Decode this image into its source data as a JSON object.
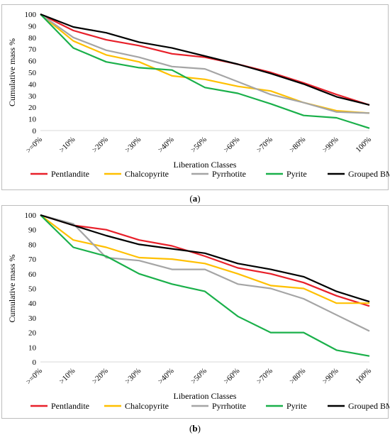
{
  "chart_data": [
    {
      "panel": "a",
      "type": "line",
      "ylabel": "Cumulative mass %",
      "xlabel": "Liberation Classes",
      "ylim": [
        0,
        100
      ],
      "yticks": [
        0,
        10,
        20,
        30,
        40,
        50,
        60,
        70,
        80,
        90,
        100
      ],
      "grid": false,
      "legend_position": "bottom",
      "categories": [
        ">=0%",
        ">10%",
        ">20%",
        ">30%",
        ">40%",
        ">50%",
        ">60%",
        ">70%",
        ">80%",
        ">90%",
        "100%"
      ],
      "series": [
        {
          "name": "Pentlandite",
          "color": "#e8202a",
          "values": [
            100,
            86,
            78,
            73,
            66,
            63,
            57,
            50,
            41,
            31,
            22
          ]
        },
        {
          "name": "Chalcopyrite",
          "color": "#ffc000",
          "values": [
            100,
            77,
            65,
            59,
            47,
            44,
            38,
            34,
            24,
            17,
            15
          ]
        },
        {
          "name": "Pyrrhotite",
          "color": "#a5a5a5",
          "values": [
            100,
            80,
            69,
            63,
            55,
            53,
            42,
            31,
            24,
            16,
            15
          ]
        },
        {
          "name": "Pyrite",
          "color": "#1ab04a",
          "values": [
            100,
            71,
            59,
            54,
            52,
            37,
            32,
            23,
            13,
            11,
            2
          ]
        },
        {
          "name": "Grouped BMS",
          "color": "#000000",
          "values": [
            100,
            89,
            84,
            76,
            71,
            64,
            57,
            49,
            40,
            29,
            22
          ]
        }
      ]
    },
    {
      "panel": "b",
      "type": "line",
      "ylabel": "Cumulative mass %",
      "xlabel": "Liberation Classes",
      "ylim": [
        0,
        100
      ],
      "yticks": [
        0,
        10,
        20,
        30,
        40,
        50,
        60,
        70,
        80,
        90,
        100
      ],
      "grid": false,
      "legend_position": "bottom",
      "categories": [
        ">=0%",
        ">10%",
        ">20%",
        ">30%",
        ">40%",
        ">50%",
        ">60%",
        ">70%",
        ">80%",
        ">90%",
        "100%"
      ],
      "series": [
        {
          "name": "Pentlandite",
          "color": "#e8202a",
          "values": [
            100,
            93,
            90,
            83,
            79,
            72,
            64,
            60,
            54,
            45,
            38
          ]
        },
        {
          "name": "Chalcopyrite",
          "color": "#ffc000",
          "values": [
            100,
            83,
            78,
            71,
            70,
            67,
            60,
            52,
            50,
            40,
            40
          ]
        },
        {
          "name": "Pyrrhotite",
          "color": "#a5a5a5",
          "values": [
            100,
            94,
            71,
            69,
            63,
            63,
            53,
            50,
            43,
            32,
            21
          ]
        },
        {
          "name": "Pyrite",
          "color": "#1ab04a",
          "values": [
            100,
            78,
            72,
            60,
            53,
            48,
            31,
            20,
            20,
            8,
            4
          ]
        },
        {
          "name": "Grouped BMS",
          "color": "#000000",
          "values": [
            100,
            93,
            86,
            80,
            77,
            74,
            67,
            63,
            58,
            48,
            41
          ]
        }
      ]
    }
  ],
  "captions": {
    "a": "a",
    "b": "b"
  }
}
